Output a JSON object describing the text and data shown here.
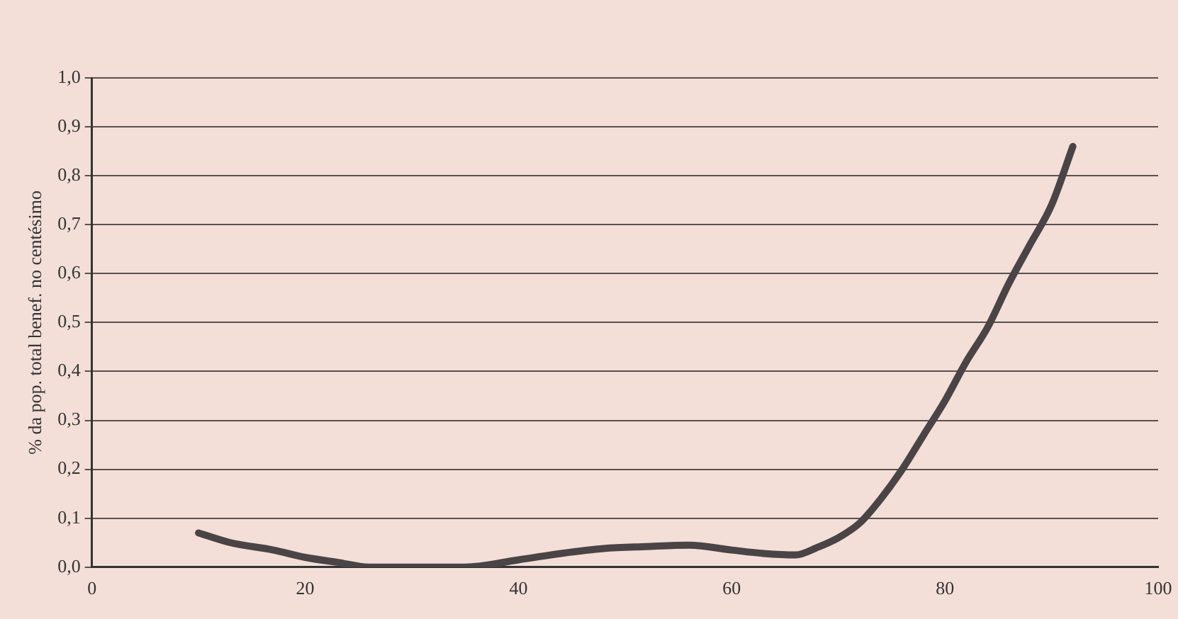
{
  "chart_data": {
    "type": "line",
    "ylabel": "% da pop. total benef. no centésimo",
    "x": [
      10,
      13,
      17,
      20,
      23,
      26,
      30,
      35,
      40,
      44,
      48,
      52,
      56,
      60,
      63,
      66,
      68,
      70,
      72,
      74,
      76,
      78,
      80,
      82,
      84,
      86,
      88,
      90,
      92
    ],
    "series": [
      {
        "color": "#4a4446",
        "values": [
          0.07,
          0.05,
          0.035,
          0.02,
          0.01,
          0.0,
          0.0,
          0.0,
          0.015,
          0.028,
          0.038,
          0.042,
          0.045,
          0.035,
          0.028,
          0.025,
          0.04,
          0.06,
          0.09,
          0.14,
          0.2,
          0.27,
          0.34,
          0.42,
          0.49,
          0.58,
          0.66,
          0.74,
          0.86
        ]
      }
    ],
    "xlim": [
      0,
      100
    ],
    "ylim": [
      0,
      1
    ],
    "xticks": [
      0,
      20,
      40,
      60,
      80,
      100
    ],
    "yticks": [
      {
        "value": 0,
        "label": "0,0"
      },
      {
        "value": 0.1,
        "label": "0,1"
      },
      {
        "value": 0.2,
        "label": "0,2"
      },
      {
        "value": 0.3,
        "label": "0,3"
      },
      {
        "value": 0.4,
        "label": "0,4"
      },
      {
        "value": 0.5,
        "label": "0,5"
      },
      {
        "value": 0.6,
        "label": "0,6"
      },
      {
        "value": 0.7,
        "label": "0,7"
      },
      {
        "value": 0.8,
        "label": "0,8"
      },
      {
        "value": 0.9,
        "label": "0,9"
      },
      {
        "value": 1,
        "label": "1,0"
      }
    ],
    "grid": "y",
    "legend": false,
    "marker": "none",
    "line_style": "solid"
  }
}
